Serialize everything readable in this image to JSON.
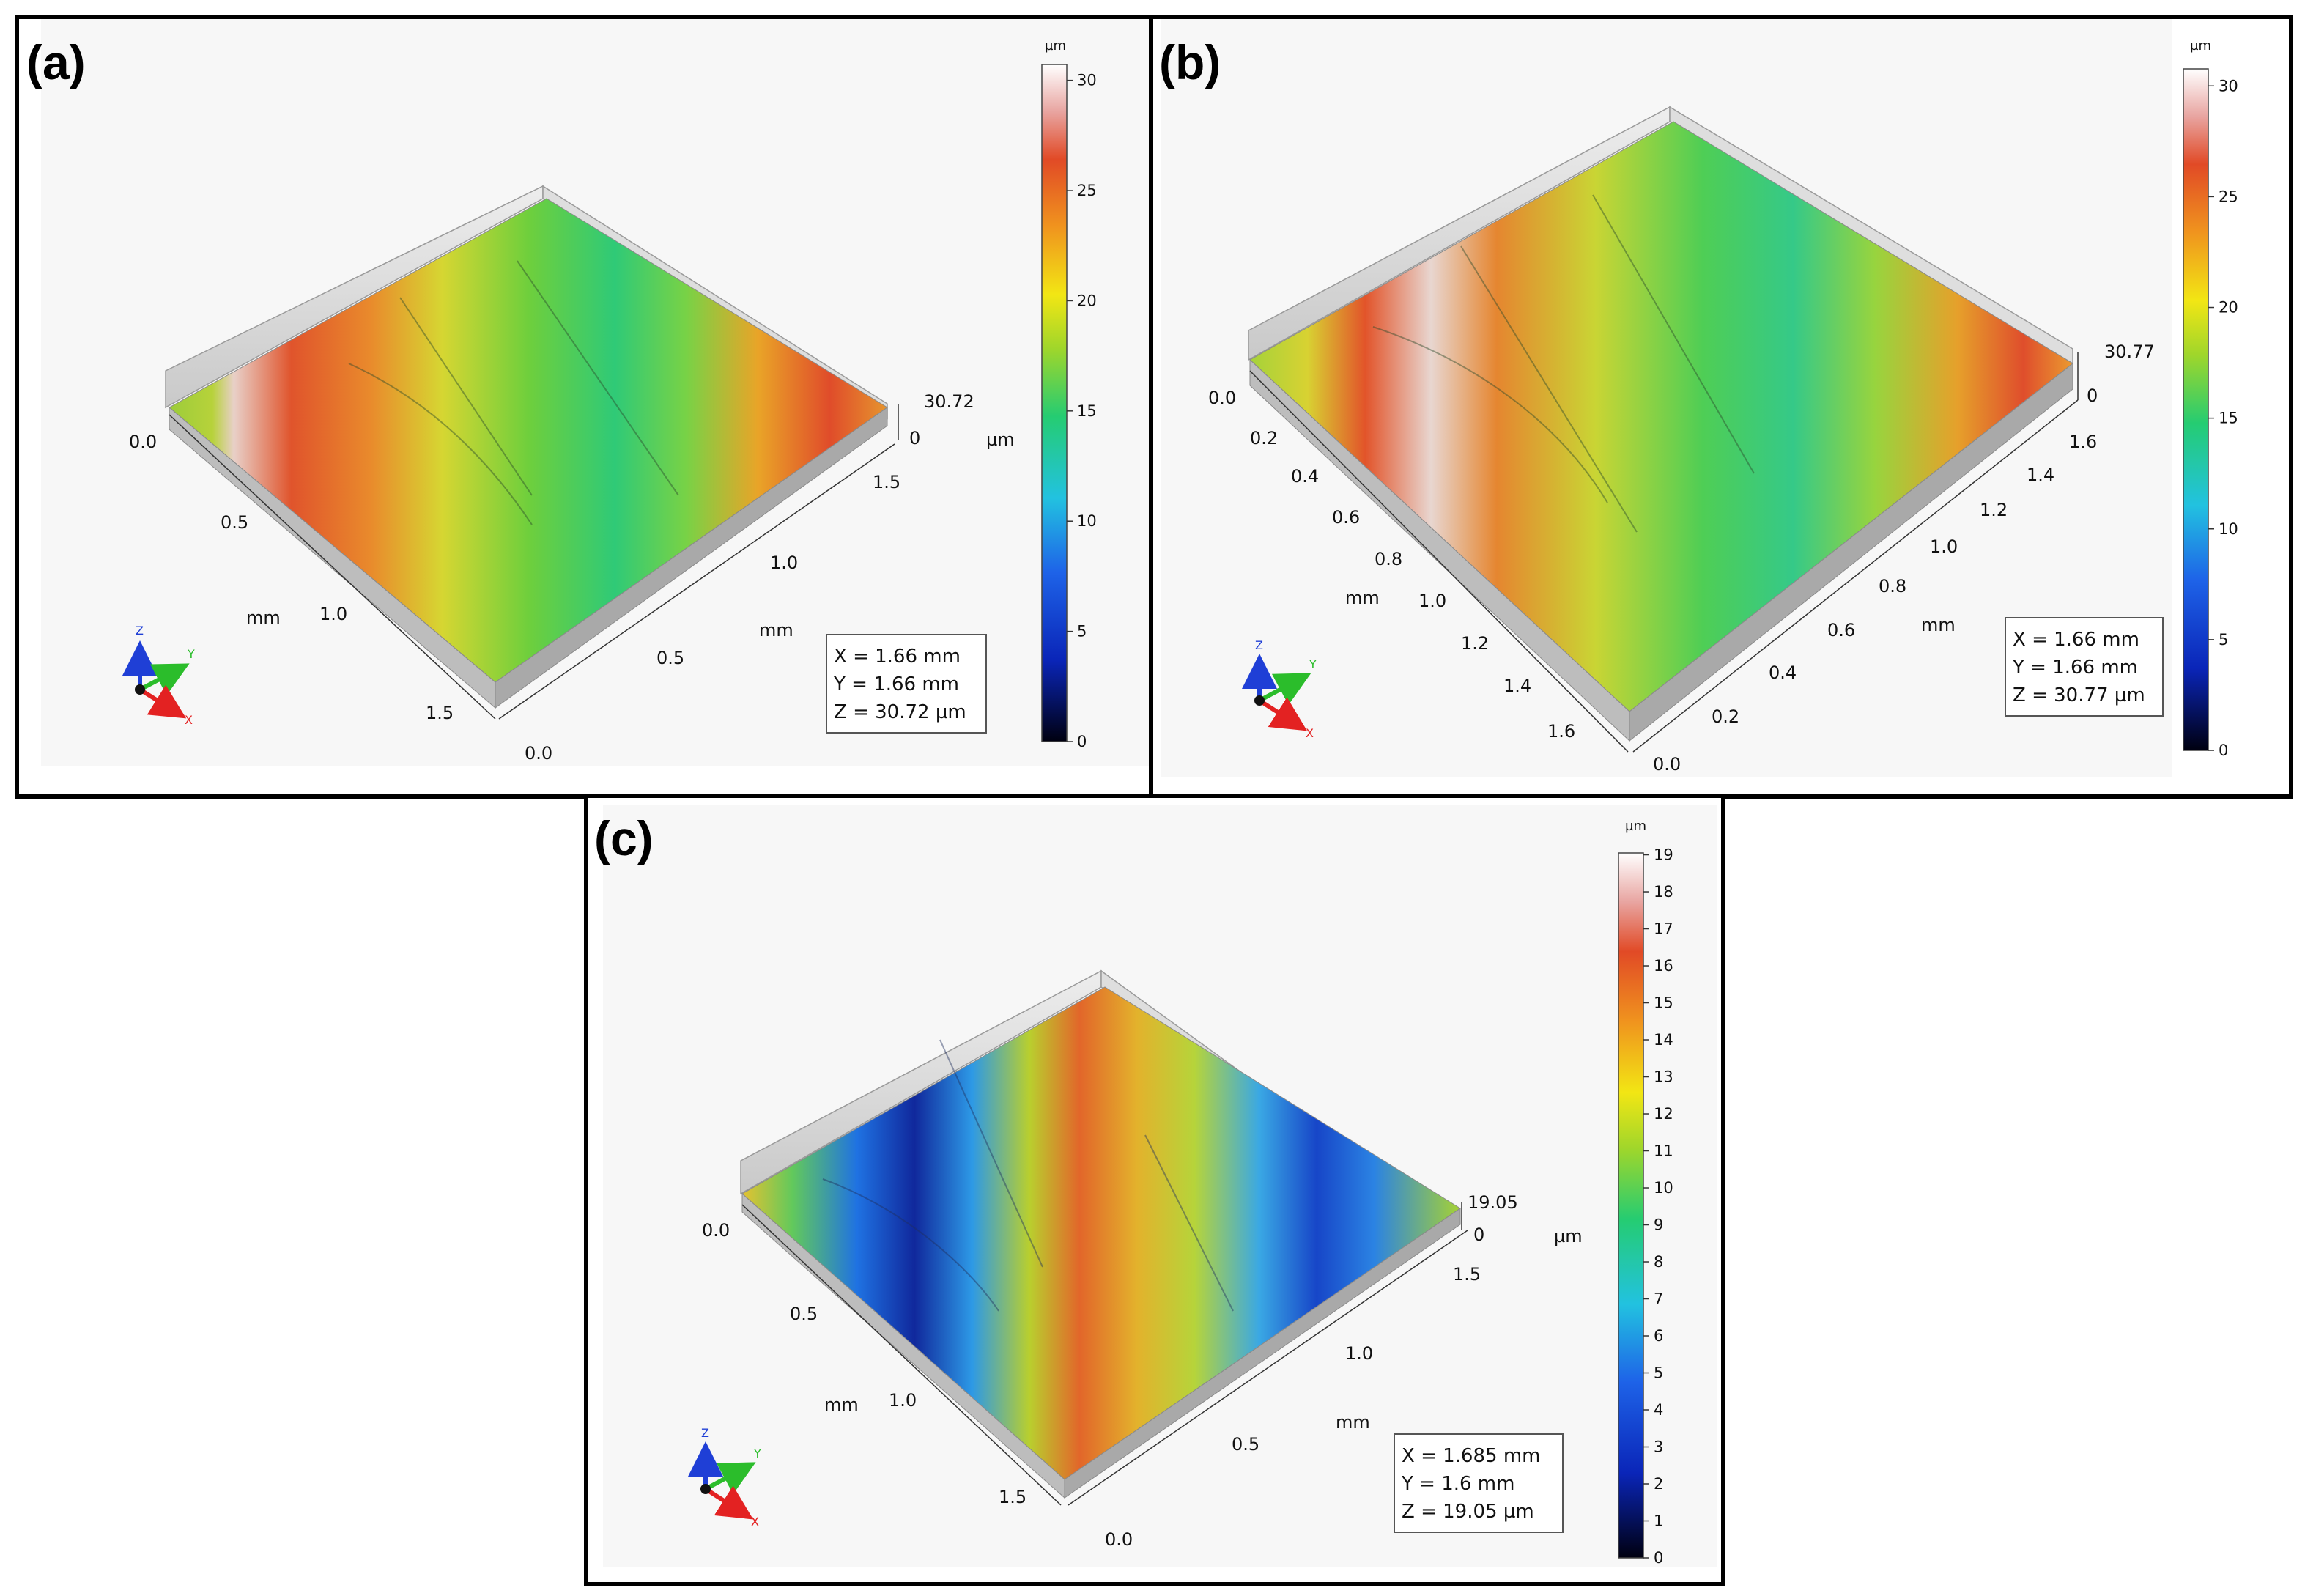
{
  "panels": {
    "a": {
      "label": "(a)",
      "colorbar": {
        "unit": "µm",
        "ticks": [
          "0",
          "5",
          "10",
          "15",
          "20",
          "25",
          "30"
        ]
      },
      "x_axis": {
        "unit": "mm",
        "ticks": [
          "0.0",
          "0.5",
          "1.0",
          "1.5"
        ]
      },
      "y_axis": {
        "unit": "mm",
        "ticks": [
          "0.0",
          "0.5",
          "1.0",
          "1.5"
        ]
      },
      "z_axis": {
        "unit": "µm",
        "top": "30.72",
        "bottom": "0"
      },
      "info": {
        "x": "X = 1.66 mm",
        "y": "Y = 1.66 mm",
        "z": "Z = 30.72 µm"
      },
      "triad": {
        "x": "X",
        "y": "Y",
        "z": "Z"
      }
    },
    "b": {
      "label": "(b)",
      "colorbar": {
        "unit": "µm",
        "ticks": [
          "0",
          "5",
          "10",
          "15",
          "20",
          "25",
          "30"
        ]
      },
      "x_axis": {
        "unit": "mm",
        "ticks": [
          "0.0",
          "0.2",
          "0.4",
          "0.6",
          "0.8",
          "1.0",
          "1.2",
          "1.4",
          "1.6"
        ]
      },
      "y_axis": {
        "unit": "mm",
        "ticks": [
          "0.0",
          "0.2",
          "0.4",
          "0.6",
          "0.8",
          "1.0",
          "1.2",
          "1.4",
          "1.6"
        ]
      },
      "z_axis": {
        "top": "30.77",
        "bottom": "0"
      },
      "info": {
        "x": "X = 1.66 mm",
        "y": "Y = 1.66 mm",
        "z": "Z = 30.77 µm"
      },
      "triad": {
        "x": "X",
        "y": "Y",
        "z": "Z"
      }
    },
    "c": {
      "label": "(c)",
      "colorbar": {
        "unit": "µm",
        "ticks": [
          "0",
          "1",
          "2",
          "3",
          "4",
          "5",
          "6",
          "7",
          "8",
          "9",
          "10",
          "11",
          "12",
          "13",
          "14",
          "15",
          "16",
          "17",
          "18",
          "19"
        ]
      },
      "x_axis": {
        "unit": "mm",
        "ticks": [
          "0.0",
          "0.5",
          "1.0",
          "1.5"
        ]
      },
      "y_axis": {
        "unit": "mm",
        "ticks": [
          "0.0",
          "0.5",
          "1.0",
          "1.5"
        ]
      },
      "z_axis": {
        "unit": "µm",
        "top": "19.05",
        "bottom": "0"
      },
      "info": {
        "x": "X = 1.685 mm",
        "y": "Y = 1.6 mm",
        "z": "Z = 19.05 µm"
      },
      "triad": {
        "x": "X",
        "y": "Y",
        "z": "Z"
      }
    }
  },
  "colors": {
    "x_axis": "#e32222",
    "y_axis": "#2bbd2b",
    "z_axis": "#1f3fd6",
    "panel_border": "#000000"
  }
}
